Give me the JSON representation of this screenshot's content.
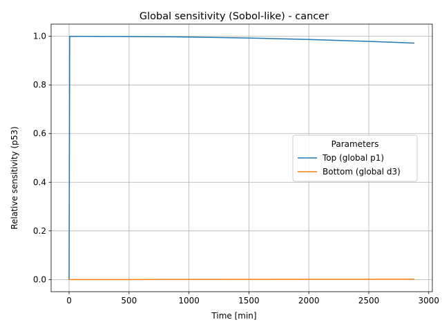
{
  "chart_data": {
    "type": "line",
    "title": "Global sensitivity (Sobol-like) - cancer",
    "xlabel": "Time [min]",
    "ylabel": "Relative sensitivity (p53)",
    "xlim": [
      -150,
      3030
    ],
    "ylim": [
      -0.05,
      1.05
    ],
    "xticks": [
      0,
      500,
      1000,
      1500,
      2000,
      2500,
      3000
    ],
    "xtick_labels": [
      "0",
      "500",
      "1000",
      "1500",
      "2000",
      "2500",
      "3000"
    ],
    "yticks": [
      0.0,
      0.2,
      0.4,
      0.6,
      0.8,
      1.0
    ],
    "ytick_labels": [
      "0.0",
      "0.2",
      "0.4",
      "0.6",
      "0.8",
      "1.0"
    ],
    "grid": true,
    "legend": {
      "title": "Parameters",
      "placement": "center-right"
    },
    "series": [
      {
        "name": "Top (global p1)",
        "color": "#1f77b4",
        "x": [
          0,
          5,
          500,
          1000,
          1500,
          2000,
          2500,
          2880
        ],
        "y": [
          0.0,
          1.0,
          0.999,
          0.997,
          0.993,
          0.987,
          0.979,
          0.972
        ]
      },
      {
        "name": "Bottom (global d3)",
        "color": "#ff7f0e",
        "x": [
          0,
          500,
          1000,
          1500,
          2000,
          2500,
          2880
        ],
        "y": [
          0.0,
          0.0,
          0.0005,
          0.0008,
          0.001,
          0.0012,
          0.0015
        ]
      }
    ]
  }
}
